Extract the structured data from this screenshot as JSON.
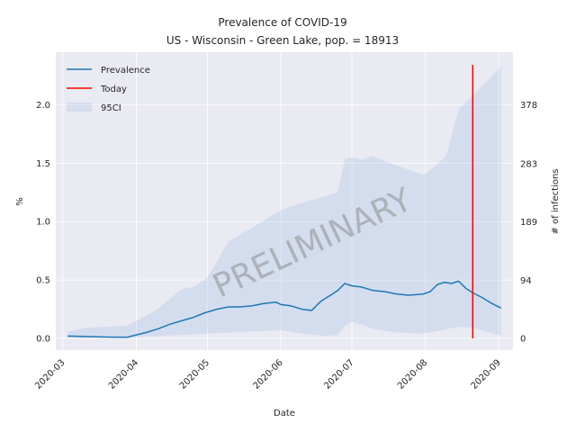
{
  "title_line1": "Prevalence of COVID-19",
  "title_line2": "US - Wisconsin - Green Lake, pop. = 18913",
  "watermark": "PRELIMINARY",
  "colors": {
    "prevalence": "#1f77b4",
    "today": "#ff0000",
    "ci": "#aec7e8",
    "background": "#e9eaf2",
    "grid": "#ffffff"
  },
  "chart_data": {
    "type": "line",
    "xlabel": "Date",
    "ylabel": "%",
    "y2label": "# of infections",
    "xlim": [
      "2020-02-27",
      "2020-09-07"
    ],
    "ylim": [
      -0.1,
      2.45
    ],
    "x_ticks": [
      "2020-03",
      "2020-04",
      "2020-05",
      "2020-06",
      "2020-07",
      "2020-08",
      "2020-09"
    ],
    "y_ticks": [
      "0.0",
      "0.5",
      "1.0",
      "1.5",
      "2.0"
    ],
    "y2_ticks": [
      {
        "value": 0,
        "label": "0"
      },
      {
        "value": 0.497,
        "label": "94"
      },
      {
        "value": 0.999,
        "label": "189"
      },
      {
        "value": 1.496,
        "label": "283"
      },
      {
        "value": 1.999,
        "label": "378"
      }
    ],
    "legend": [
      "Prevalence",
      "Today",
      "95CI"
    ],
    "legend_position": "top-left",
    "grid": true,
    "today": "2020-08-21",
    "today_range": [
      0.0,
      2.34
    ],
    "series": [
      {
        "name": "Prevalence",
        "x": [
          "2020-03-03",
          "2020-03-10",
          "2020-03-20",
          "2020-03-28",
          "2020-04-01",
          "2020-04-05",
          "2020-04-10",
          "2020-04-15",
          "2020-04-20",
          "2020-04-25",
          "2020-04-30",
          "2020-05-05",
          "2020-05-10",
          "2020-05-15",
          "2020-05-20",
          "2020-05-25",
          "2020-05-30",
          "2020-06-01",
          "2020-06-05",
          "2020-06-10",
          "2020-06-14",
          "2020-06-18",
          "2020-06-22",
          "2020-06-25",
          "2020-06-28",
          "2020-07-01",
          "2020-07-05",
          "2020-07-10",
          "2020-07-15",
          "2020-07-20",
          "2020-07-25",
          "2020-07-31",
          "2020-08-03",
          "2020-08-06",
          "2020-08-09",
          "2020-08-12",
          "2020-08-15",
          "2020-08-18",
          "2020-08-21",
          "2020-08-25",
          "2020-08-29",
          "2020-09-02"
        ],
        "values": [
          0.02,
          0.016,
          0.012,
          0.01,
          0.03,
          0.05,
          0.08,
          0.12,
          0.15,
          0.18,
          0.22,
          0.25,
          0.27,
          0.27,
          0.28,
          0.3,
          0.31,
          0.29,
          0.28,
          0.25,
          0.24,
          0.32,
          0.37,
          0.41,
          0.47,
          0.45,
          0.44,
          0.41,
          0.4,
          0.38,
          0.37,
          0.38,
          0.4,
          0.46,
          0.48,
          0.47,
          0.49,
          0.43,
          0.39,
          0.35,
          0.3,
          0.26
        ]
      }
    ],
    "ci": {
      "x": [
        "2020-03-03",
        "2020-03-10",
        "2020-03-20",
        "2020-03-28",
        "2020-04-01",
        "2020-04-10",
        "2020-04-20",
        "2020-04-25",
        "2020-05-01",
        "2020-05-10",
        "2020-05-20",
        "2020-06-01",
        "2020-06-10",
        "2020-06-20",
        "2020-06-25",
        "2020-06-28",
        "2020-07-01",
        "2020-07-05",
        "2020-07-10",
        "2020-07-20",
        "2020-07-31",
        "2020-08-05",
        "2020-08-10",
        "2020-08-15",
        "2020-08-21",
        "2020-08-28",
        "2020-09-02"
      ],
      "upper": [
        0.06,
        0.09,
        0.1,
        0.11,
        0.15,
        0.25,
        0.42,
        0.44,
        0.52,
        0.83,
        0.95,
        1.1,
        1.16,
        1.22,
        1.25,
        1.53,
        1.55,
        1.53,
        1.56,
        1.48,
        1.4,
        1.47,
        1.57,
        1.96,
        2.08,
        2.22,
        2.33
      ],
      "lower": [
        0.005,
        0.004,
        0.004,
        0.003,
        0.01,
        0.02,
        0.03,
        0.035,
        0.04,
        0.05,
        0.06,
        0.07,
        0.04,
        0.02,
        0.03,
        0.11,
        0.14,
        0.12,
        0.08,
        0.05,
        0.04,
        0.06,
        0.08,
        0.1,
        0.09,
        0.05,
        0.02
      ]
    }
  }
}
